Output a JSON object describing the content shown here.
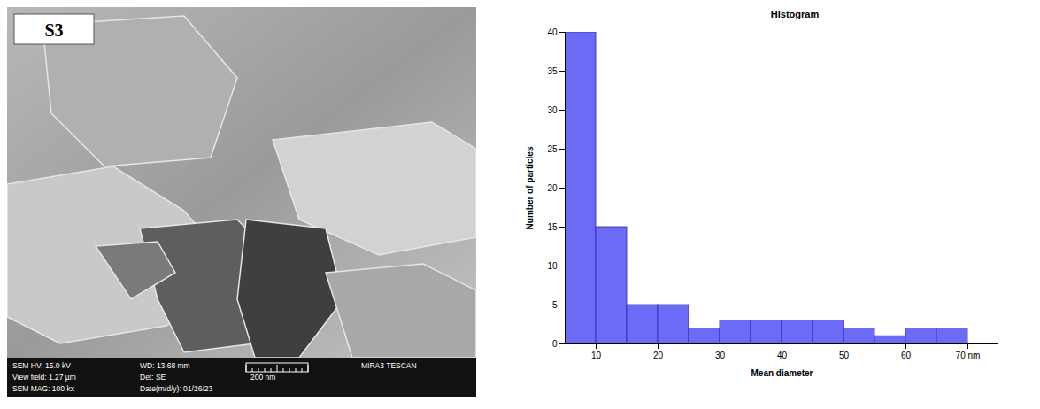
{
  "chart_data": {
    "type": "histogram",
    "title": "Histogram",
    "x_label": "Mean diameter",
    "y_label": "Number of particles",
    "bins": [
      5,
      10,
      15,
      20,
      25,
      30,
      35,
      40,
      45,
      50,
      55,
      60,
      65,
      70
    ],
    "values": [
      40,
      15,
      5,
      5,
      2,
      3,
      3,
      3,
      3,
      2,
      1,
      2,
      2
    ],
    "color": "#6b6bf5",
    "xlim": [
      5,
      75
    ],
    "xticks": [
      10,
      20,
      30,
      40,
      50,
      60,
      {
        "value": 70,
        "label": "70 nm"
      }
    ],
    "ylim": [
      0,
      40
    ],
    "yticks": [
      0,
      5,
      10,
      15,
      20,
      25,
      30,
      35,
      40
    ],
    "grid": false
  },
  "micrograph": {
    "label": "S3",
    "info_rows": [
      [
        "SEM HV: 15.0 kV",
        "WD: 13.68 mm",
        "MIRA3 TESCAN"
      ],
      [
        "View field: 1.27 µm",
        "Det: SE"
      ],
      [
        "SEM MAG: 100 kx",
        "Date(m/d/y): 01/26/23"
      ]
    ],
    "scale_bar": "200 nm"
  }
}
